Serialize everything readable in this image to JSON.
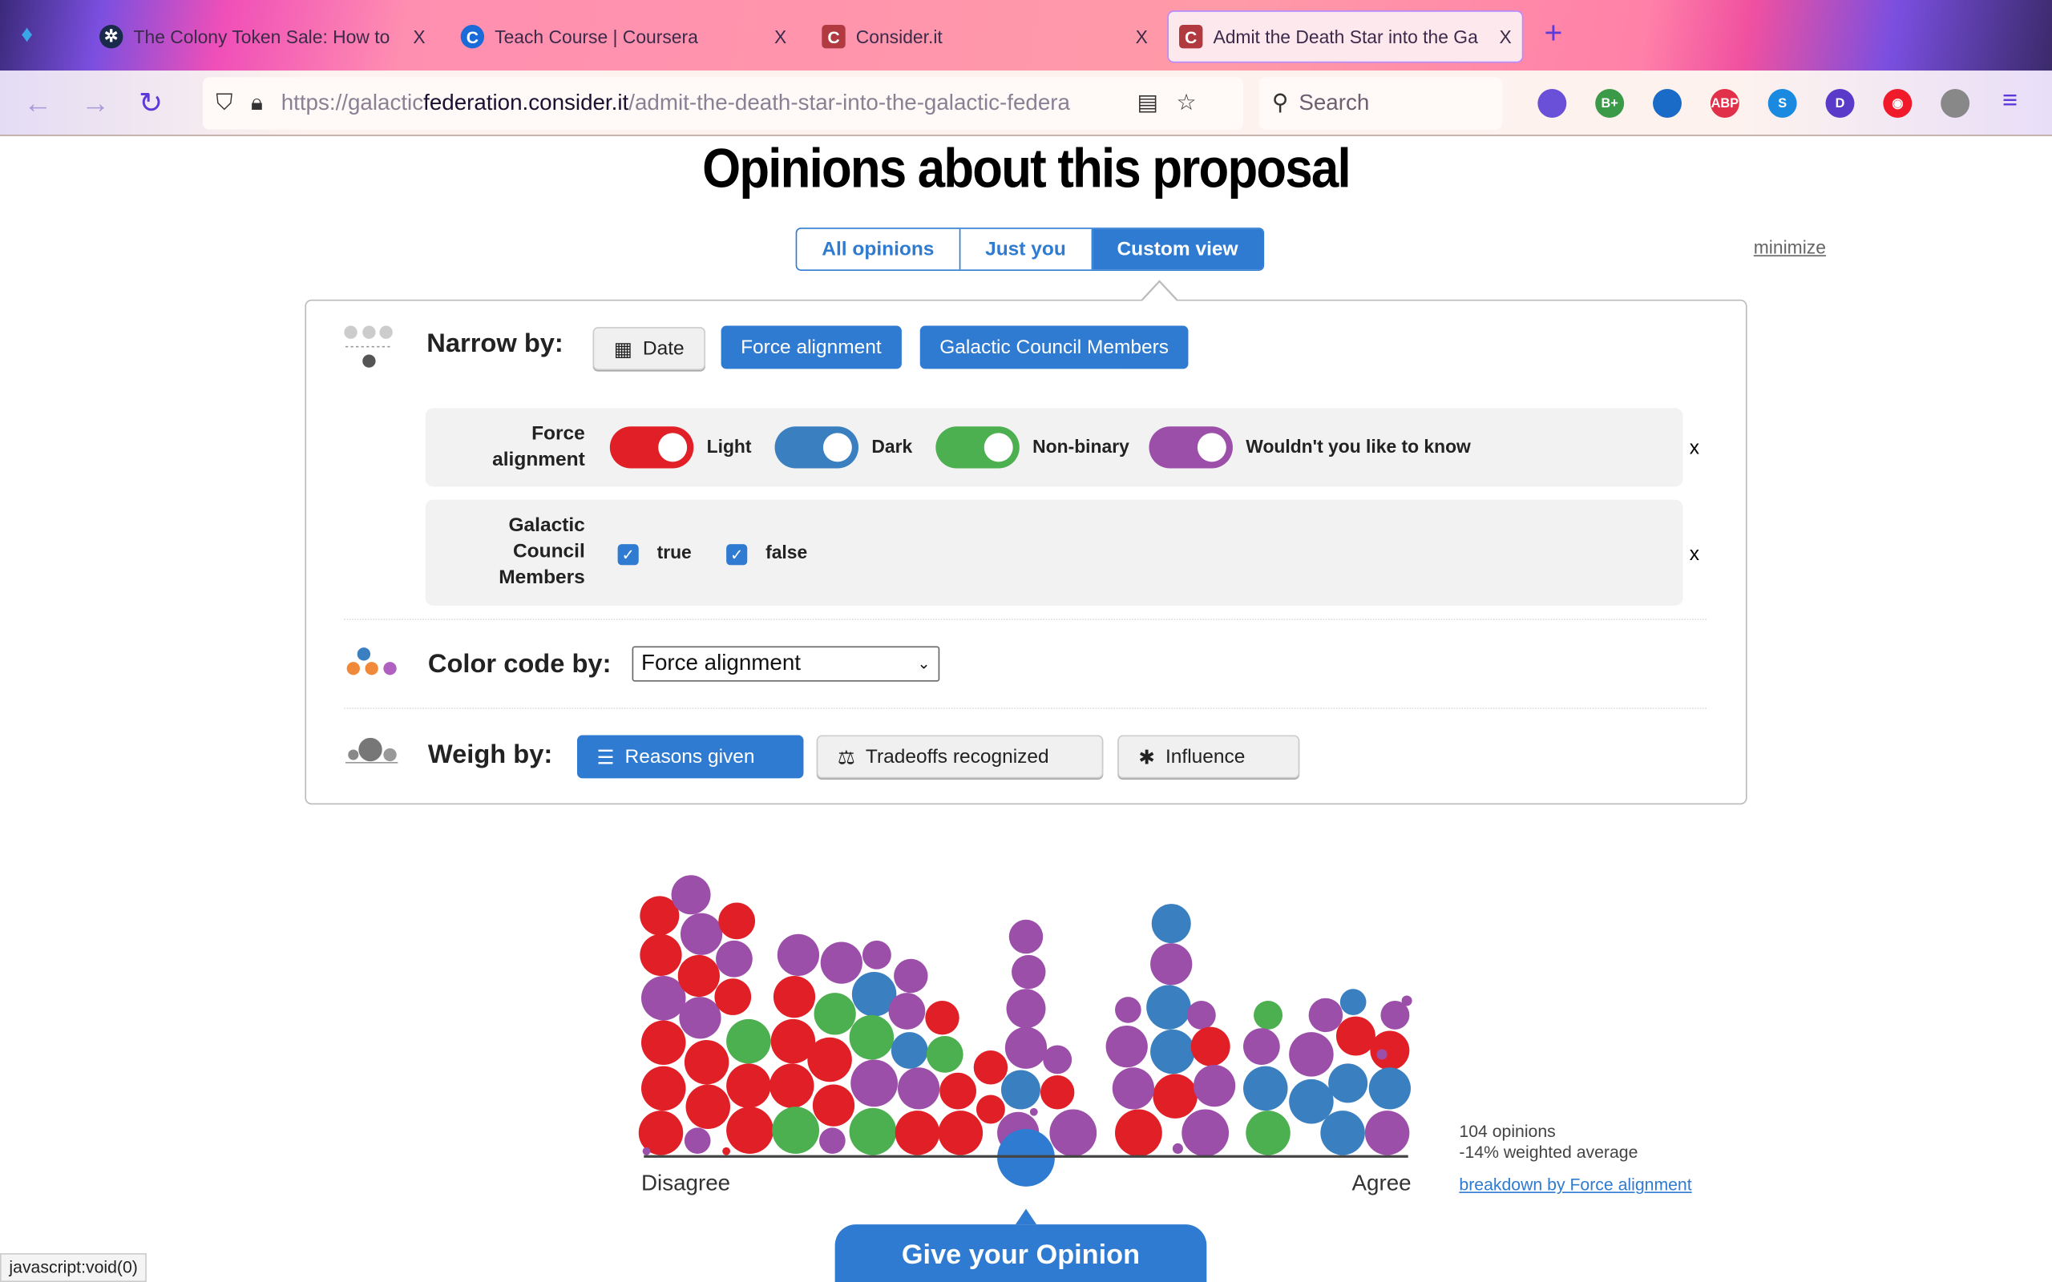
{
  "browser": {
    "tabs": [
      {
        "title": "The Colony Token Sale: How to p",
        "icon": "colony-icon"
      },
      {
        "title": "Teach Course | Coursera",
        "icon": "coursera-icon"
      },
      {
        "title": "Consider.it",
        "icon": "considerit-icon"
      },
      {
        "title": "Admit the Death Star into the Ga",
        "icon": "considerit-icon",
        "active": true
      }
    ],
    "close_glyph": "X",
    "new_tab_glyph": "+",
    "url_prefix": "https://galactic",
    "url_domain": "federation.consider.it",
    "url_path": "/admit-the-death-star-into-the-galactic-federa",
    "search_placeholder": "Search",
    "extensions": [
      {
        "name": "pocket",
        "label": "",
        "color": "#6a4fd8"
      },
      {
        "name": "b-plus",
        "label": "B+",
        "color": "#3a9a48"
      },
      {
        "name": "pin",
        "label": "",
        "color": "#1a6ac8"
      },
      {
        "name": "adblock",
        "label": "ABP",
        "color": "#e0304a"
      },
      {
        "name": "s-ext",
        "label": "S",
        "color": "#1a8ae0"
      },
      {
        "name": "d-ext",
        "label": "D",
        "color": "#5a3ac8"
      },
      {
        "name": "record",
        "label": "◉",
        "color": "#f01a2a"
      },
      {
        "name": "note",
        "label": "",
        "color": "#888888"
      }
    ]
  },
  "page": {
    "title": "Opinions about this proposal",
    "views": [
      "All opinions",
      "Just you",
      "Custom view"
    ],
    "active_view": "Custom view",
    "minimize": "minimize",
    "narrow_by": {
      "label": "Narrow by:",
      "buttons": [
        {
          "label": "Date",
          "active": false
        },
        {
          "label": "Force alignment",
          "active": true
        },
        {
          "label": "Galactic Council Members",
          "active": true
        }
      ]
    },
    "filters": {
      "force": {
        "label": "Force alignment",
        "options": [
          {
            "label": "Light",
            "on": true,
            "color": "#e11f26"
          },
          {
            "label": "Dark",
            "on": true,
            "color": "#3a7fc0"
          },
          {
            "label": "Non-binary",
            "on": true,
            "color": "#4caf50"
          },
          {
            "label": "Wouldn't you like to know",
            "on": true,
            "color": "#9b4fa9"
          }
        ],
        "remove": "x"
      },
      "council": {
        "label": "Galactic Council Members",
        "options": [
          {
            "label": "true",
            "checked": true
          },
          {
            "label": "false",
            "checked": true
          }
        ],
        "remove": "x"
      }
    },
    "color_code": {
      "label": "Color code by:",
      "selected": "Force alignment"
    },
    "weigh_by": {
      "label": "Weigh by:",
      "buttons": [
        {
          "label": "Reasons given",
          "active": true
        },
        {
          "label": "Tradeoffs recognized",
          "active": false
        },
        {
          "label": "Influence",
          "active": false
        }
      ]
    },
    "histogram": {
      "left_label": "Disagree",
      "right_label": "Agree",
      "opinions": "104 opinions",
      "average": "-14% weighted average",
      "breakdown_link": "breakdown by Force alignment",
      "group_colors": {
        "R": "#e11f26",
        "B": "#3a7fc0",
        "G": "#4caf50",
        "P": "#9b4fa9"
      },
      "user_color": "#2f7bd1"
    },
    "give_opinion": "Give your Opinion",
    "status_bar": "javascript:void(0)"
  }
}
